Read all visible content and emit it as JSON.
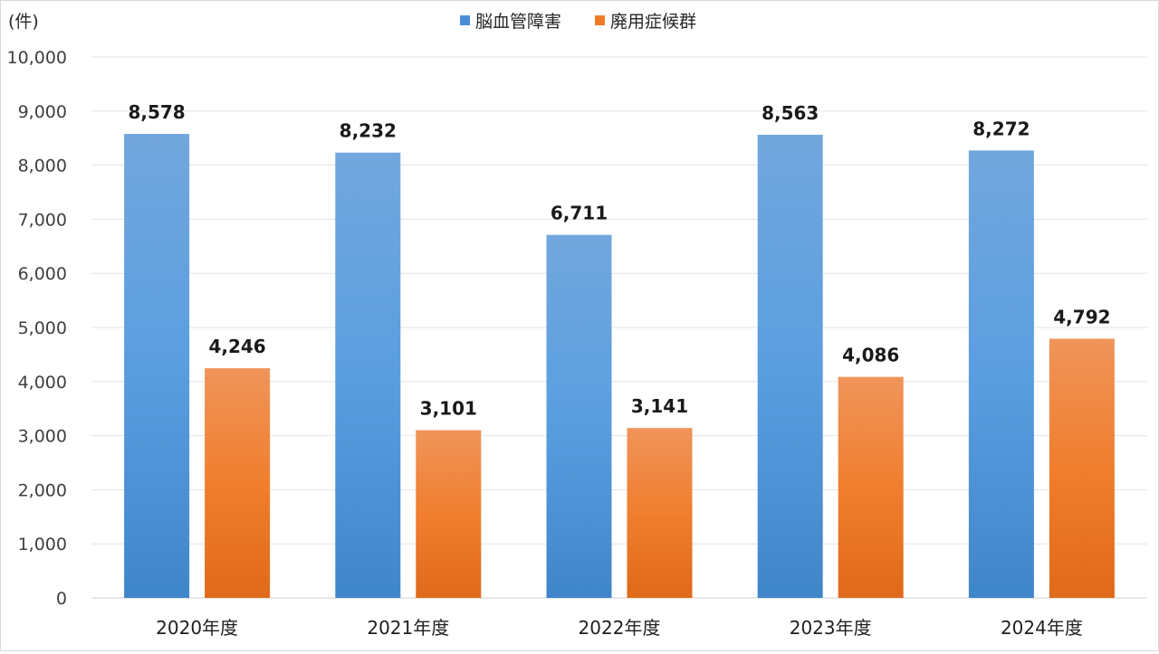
{
  "chart_data": {
    "type": "bar",
    "unit_label": "(件)",
    "categories": [
      "2020年度",
      "2021年度",
      "2022年度",
      "2023年度",
      "2024年度"
    ],
    "series": [
      {
        "name": "脳血管障害",
        "values": [
          8578,
          8232,
          6711,
          8563,
          8272
        ],
        "color": "#4a90d9"
      },
      {
        "name": "廃用症候群",
        "values": [
          4246,
          3101,
          3141,
          4086,
          4792
        ],
        "color": "#f07c2a"
      }
    ],
    "data_labels": [
      [
        "8,578",
        "8,232",
        "6,711",
        "8,563",
        "8,272"
      ],
      [
        "4,246",
        "3,101",
        "3,141",
        "4,086",
        "4,792"
      ]
    ],
    "y_ticks": [
      "0",
      "1,000",
      "2,000",
      "3,000",
      "4,000",
      "5,000",
      "6,000",
      "7,000",
      "8,000",
      "9,000",
      "10,000"
    ],
    "ylim": [
      0,
      10000
    ],
    "grid": true,
    "legend_position": "top-center"
  }
}
